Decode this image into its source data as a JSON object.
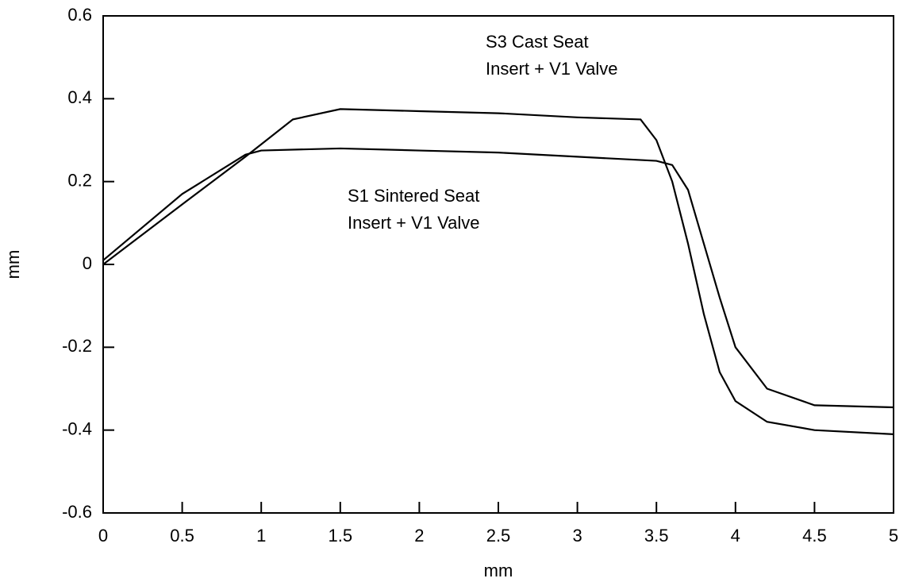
{
  "chart_data": {
    "type": "line",
    "xlabel": "mm",
    "ylabel": "mm",
    "xlim": [
      0,
      5
    ],
    "ylim": [
      -0.6,
      0.6
    ],
    "xticks": [
      0,
      0.5,
      1,
      1.5,
      2,
      2.5,
      3,
      3.5,
      4,
      4.5,
      5
    ],
    "yticks": [
      -0.6,
      -0.4,
      -0.2,
      0,
      0.2,
      0.4,
      0.6
    ],
    "grid": false,
    "series": [
      {
        "name": [
          "S3 Cast Seat",
          "Insert + V1 Valve"
        ],
        "color": "#000000",
        "x": [
          0,
          0.5,
          0.9,
          1.0,
          1.2,
          1.5,
          2,
          2.5,
          3,
          3.4,
          3.5,
          3.6,
          3.7,
          3.8,
          3.9,
          4.0,
          4.2,
          4.5,
          5
        ],
        "values": [
          0,
          0.145,
          0.26,
          0.29,
          0.35,
          0.375,
          0.37,
          0.365,
          0.355,
          0.35,
          0.3,
          0.2,
          0.05,
          -0.12,
          -0.26,
          -0.33,
          -0.38,
          -0.4,
          -0.41
        ]
      },
      {
        "name": [
          "S1 Sintered Seat",
          "Insert + V1 Valve"
        ],
        "color": "#000000",
        "x": [
          0,
          0.5,
          0.9,
          1.0,
          1.5,
          2,
          2.5,
          3,
          3.5,
          3.6,
          3.7,
          3.8,
          3.9,
          4.0,
          4.2,
          4.5,
          5
        ],
        "values": [
          0.01,
          0.17,
          0.265,
          0.275,
          0.28,
          0.275,
          0.27,
          0.26,
          0.25,
          0.24,
          0.18,
          0.05,
          -0.08,
          -0.2,
          -0.3,
          -0.34,
          -0.345
        ]
      }
    ]
  }
}
